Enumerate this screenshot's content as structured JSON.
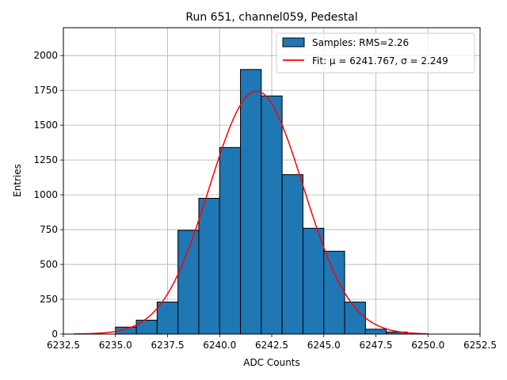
{
  "chart_data": {
    "type": "bar",
    "title": "Run 651, channel059, Pedestal",
    "xlabel": "ADC Counts",
    "ylabel": "Entries",
    "xlim": [
      6232.5,
      6252.5
    ],
    "ylim": [
      0,
      2200
    ],
    "grid": true,
    "legend_position": "top-right",
    "x_ticks": [
      6232.5,
      6235.0,
      6237.5,
      6240.0,
      6242.5,
      6245.0,
      6247.5,
      6250.0,
      6252.5
    ],
    "x_tick_labels": [
      "6232.5",
      "6235.0",
      "6237.5",
      "6240.0",
      "6242.5",
      "6245.0",
      "6247.5",
      "6250.0",
      "6252.5"
    ],
    "y_ticks": [
      0,
      250,
      500,
      750,
      1000,
      1250,
      1500,
      1750,
      2000
    ],
    "y_tick_labels": [
      "0",
      "250",
      "500",
      "750",
      "1000",
      "1250",
      "1500",
      "1750",
      "2000"
    ],
    "histogram": {
      "name": "Samples: RMS=2.26",
      "color": "#1f77b4",
      "edge_color": "#000000",
      "bin_edges": [
        6235.0,
        6236.0,
        6237.0,
        6238.0,
        6239.0,
        6240.0,
        6241.0,
        6242.0,
        6243.0,
        6244.0,
        6245.0,
        6246.0,
        6247.0,
        6248.0,
        6249.0
      ],
      "counts": [
        50,
        100,
        230,
        745,
        975,
        1340,
        1900,
        1710,
        1145,
        760,
        595,
        230,
        35,
        15
      ]
    },
    "fit": {
      "name": "Fit: μ = 6241.767, σ = 2.249",
      "color": "#ff0000",
      "mu": 6241.767,
      "sigma": 2.249,
      "peak": 1745,
      "x_range": [
        6233.0,
        6250.0
      ]
    }
  }
}
